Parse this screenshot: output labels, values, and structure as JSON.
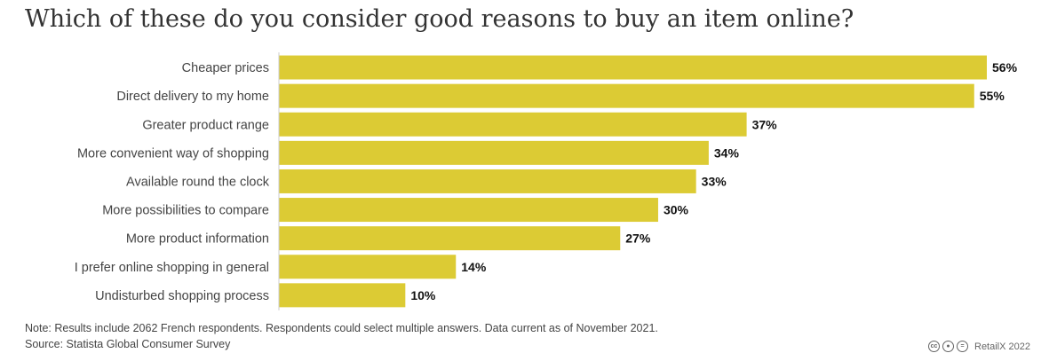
{
  "title": "Which of these do you consider good reasons to buy an item online?",
  "note": "Note: Results include 2062 French respondents. Respondents could select multiple answers. Data current as of November 2021.",
  "source": "Source: Statista Global Consumer Survey",
  "credit": {
    "text": "RetailX 2022",
    "icons": [
      "creative-commons-icon",
      "attribution-icon",
      "no-derivatives-icon"
    ]
  },
  "colors": {
    "bar": "#dccb34",
    "axis": "#cccccc",
    "label": "#444444",
    "value": "#111111"
  },
  "chart_data": {
    "type": "bar",
    "orientation": "horizontal",
    "title": "Which of these do you consider good reasons to buy an item online?",
    "xlabel": "",
    "ylabel": "",
    "unit": "%",
    "xlim": [
      0,
      56
    ],
    "grid": false,
    "categories": [
      "Cheaper prices",
      "Direct delivery to my home",
      "Greater product range",
      "More convenient way of shopping",
      "Available round the clock",
      "More possibilities to compare",
      "More product information",
      "I prefer online shopping in general",
      "Undisturbed shopping process"
    ],
    "values": [
      56,
      55,
      37,
      34,
      33,
      30,
      27,
      14,
      10
    ],
    "value_labels": [
      "56%",
      "55%",
      "37%",
      "34%",
      "33%",
      "30%",
      "27%",
      "14%",
      "10%"
    ]
  }
}
